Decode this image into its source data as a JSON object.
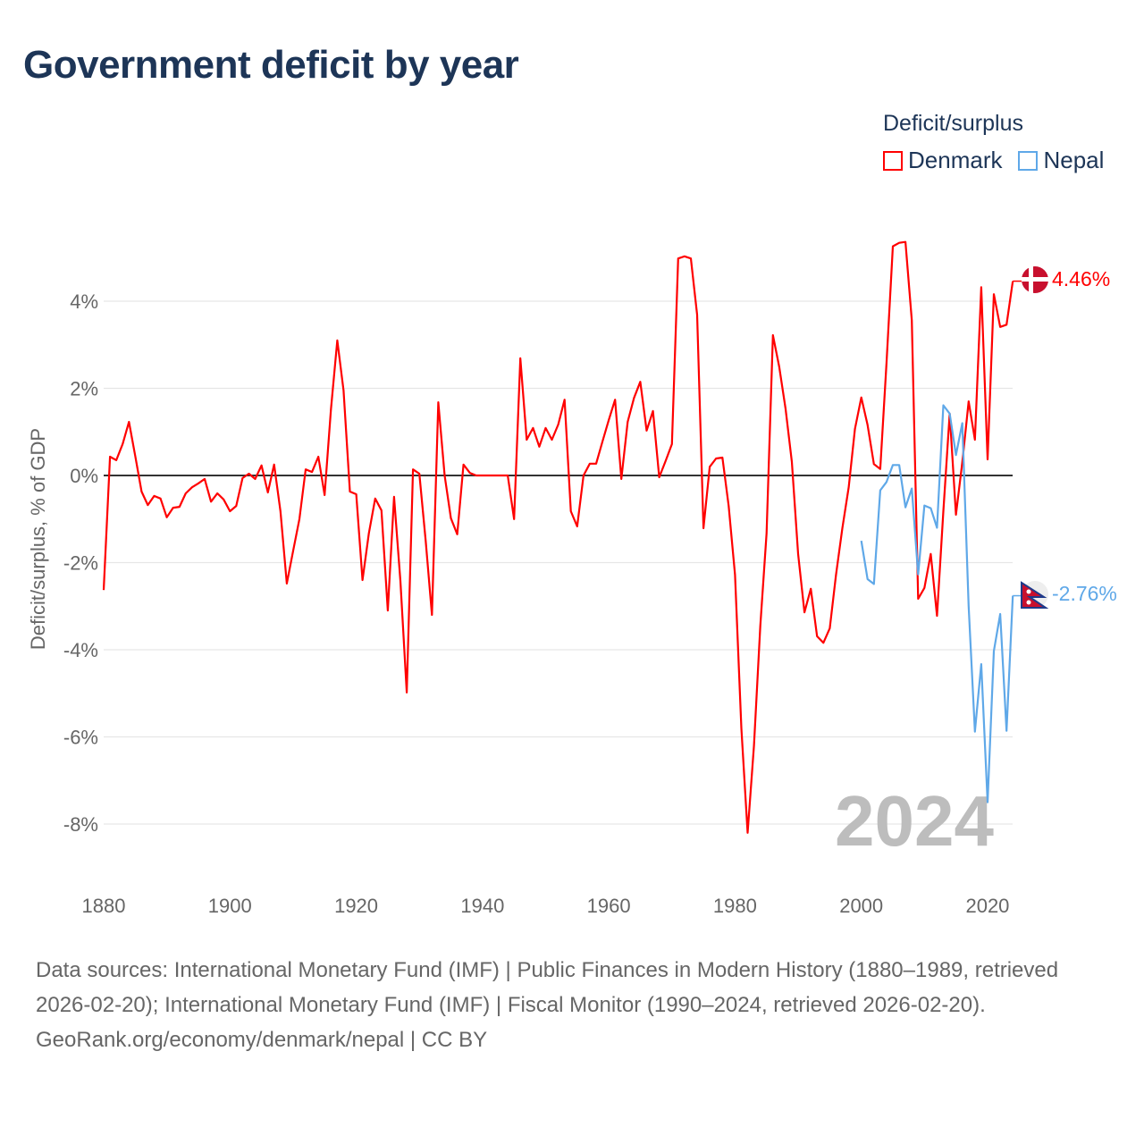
{
  "title": "Government deficit by year",
  "legend": {
    "title": "Deficit/surplus",
    "items": [
      "Denmark",
      "Nepal"
    ]
  },
  "year_label": "2024",
  "footer": {
    "sources": "Data sources: International Monetary Fund (IMF) | Public Finances in Modern History (1880–1989, retrieved 2026-02-20); International Monetary Fund (IMF) | Fiscal Monitor (1990–2024, retrieved 2026-02-20).",
    "credit": "GeoRank.org/economy/denmark/nepal | CC BY"
  },
  "chart_data": {
    "type": "line",
    "title": "Government deficit by year",
    "xlabel": "",
    "ylabel": "Deficit/surplus, % of GDP",
    "xlim": [
      1880,
      2024
    ],
    "ylim": [
      -9,
      5.5
    ],
    "x_ticks": [
      "1880",
      "1900",
      "1920",
      "1940",
      "1960",
      "1980",
      "2000",
      "2020"
    ],
    "x_tick_values": [
      1880,
      1900,
      1920,
      1940,
      1960,
      1980,
      2000,
      2020
    ],
    "y_ticks": [
      "4%",
      "2%",
      "0%",
      "-2%",
      "-4%",
      "-6%",
      "-8%"
    ],
    "y_tick_values": [
      4,
      2,
      0,
      -2,
      -4,
      -6,
      -8
    ],
    "grid": true,
    "legend_position": "top-right",
    "series": [
      {
        "name": "Denmark",
        "color": "#ff0000",
        "end_label": "4.46%",
        "start_year": 1880,
        "values": [
          -2.63,
          0.43,
          0.35,
          0.72,
          1.23,
          0.45,
          -0.37,
          -0.68,
          -0.47,
          -0.53,
          -0.96,
          -0.74,
          -0.72,
          -0.41,
          -0.27,
          -0.18,
          -0.08,
          -0.6,
          -0.41,
          -0.55,
          -0.82,
          -0.7,
          -0.06,
          0.04,
          -0.08,
          0.23,
          -0.39,
          0.25,
          -0.82,
          -2.48,
          -1.74,
          -1.0,
          0.14,
          0.08,
          0.43,
          -0.45,
          1.52,
          3.1,
          1.95,
          -0.37,
          -0.43,
          -2.4,
          -1.33,
          -0.53,
          -0.8,
          -3.1,
          -0.49,
          -2.42,
          -4.98,
          0.14,
          0.04,
          -1.5,
          -3.2,
          1.68,
          0,
          -0.98,
          -1.35,
          0.25,
          0.06,
          0,
          0,
          0,
          0,
          0,
          0,
          -1.0,
          2.69,
          0.82,
          1.09,
          0.66,
          1.09,
          0.82,
          1.17,
          1.74,
          -0.82,
          -1.17,
          0,
          0.27,
          0.27,
          0.78,
          1.27,
          1.74,
          -0.08,
          1.23,
          1.78,
          2.15,
          1.03,
          1.48,
          -0.04,
          0.33,
          0.72,
          4.98,
          5.03,
          4.98,
          3.69,
          -1.21,
          0.2,
          0.39,
          0.41,
          -0.7,
          -2.28,
          -5.8,
          -8.2,
          -6.2,
          -3.45,
          -1.33,
          3.22,
          2.5,
          1.54,
          0.31,
          -1.8,
          -3.14,
          -2.6,
          -3.69,
          -3.84,
          -3.51,
          -2.28,
          -1.21,
          -0.27,
          1.07,
          1.79,
          1.16,
          0.26,
          0.15,
          2.58,
          5.26,
          5.34,
          5.36,
          3.56,
          -2.83,
          -2.58,
          -1.8,
          -3.22,
          -0.82,
          1.42,
          -0.9,
          0.3,
          1.7,
          0.82,
          4.32,
          0.37,
          4.16,
          3.41,
          3.46,
          4.46
        ]
      },
      {
        "name": "Nepal",
        "color": "#5fa8e8",
        "end_label": "-2.76%",
        "start_year": 2000,
        "values": [
          -1.5,
          -2.38,
          -2.49,
          -0.34,
          -0.15,
          0.24,
          0.24,
          -0.73,
          -0.3,
          -2.27,
          -0.69,
          -0.75,
          -1.2,
          1.61,
          1.42,
          0.47,
          1.2,
          -3.0,
          -5.88,
          -4.33,
          -7.5,
          -4.03,
          -3.18,
          -5.86,
          -2.76
        ]
      }
    ]
  }
}
